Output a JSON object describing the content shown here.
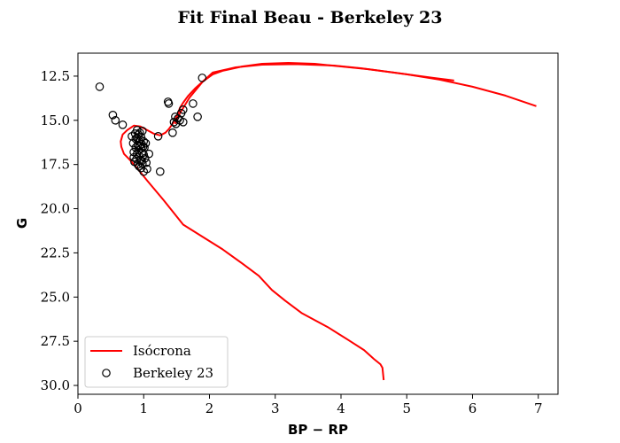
{
  "chart_data": {
    "type": "scatter",
    "title": "Fit Final Beau - Berkeley 23",
    "xlabel": "BP − RP",
    "ylabel": "G",
    "xlim": [
      0,
      7.3
    ],
    "ylim": [
      30.5,
      11.2
    ],
    "y_inverted": true,
    "grid": false,
    "legend_position": "lower-left",
    "x_ticks": [
      0,
      1,
      2,
      3,
      4,
      5,
      6,
      7
    ],
    "x_tick_labels": [
      "0",
      "1",
      "2",
      "3",
      "4",
      "5",
      "6",
      "7"
    ],
    "y_ticks": [
      12.5,
      15.0,
      17.5,
      20.0,
      22.5,
      25.0,
      27.5,
      30.0
    ],
    "y_tick_labels": [
      "12.5",
      "15.0",
      "17.5",
      "20.0",
      "22.5",
      "25.0",
      "27.5",
      "30.0"
    ],
    "series": [
      {
        "name": "Isócrona",
        "kind": "line",
        "color": "#ff0000",
        "x": [
          4.65,
          4.63,
          4.6,
          4.5,
          4.35,
          4.1,
          3.8,
          3.4,
          3.15,
          2.95,
          2.75,
          2.5,
          2.2,
          1.9,
          1.6,
          1.3,
          1.05,
          0.9,
          0.78,
          0.7,
          0.66,
          0.65,
          0.68,
          0.75,
          0.85,
          0.95,
          1.05,
          1.15,
          1.25,
          1.33,
          1.38,
          1.42,
          1.45,
          1.48,
          1.52,
          1.55,
          1.6,
          1.68,
          1.78,
          1.9,
          2.05,
          2.2,
          2.5,
          2.8,
          3.2,
          3.6,
          4.0,
          4.4,
          4.8,
          5.1,
          5.4,
          5.72
        ],
        "y": [
          29.7,
          29.0,
          28.8,
          28.5,
          28.0,
          27.4,
          26.7,
          25.9,
          25.2,
          24.6,
          23.8,
          23.1,
          22.3,
          21.6,
          20.9,
          19.5,
          18.4,
          17.7,
          17.2,
          16.9,
          16.5,
          16.2,
          15.8,
          15.55,
          15.3,
          15.35,
          15.55,
          15.75,
          15.85,
          15.7,
          15.5,
          15.3,
          15.15,
          14.95,
          14.6,
          14.3,
          14.0,
          13.6,
          13.2,
          12.8,
          12.4,
          12.2,
          11.95,
          11.8,
          11.75,
          11.8,
          11.95,
          12.1,
          12.3,
          12.45,
          12.6,
          12.75
        ]
      },
      {
        "name": "",
        "kind": "line",
        "color": "#ff0000",
        "x": [
          1.48,
          1.55,
          1.7,
          1.9,
          2.05,
          2.4,
          2.8,
          3.3,
          3.9,
          4.3,
          4.6,
          5.0,
          5.5,
          6.0,
          6.5,
          6.97
        ],
        "y": [
          15.2,
          14.6,
          13.7,
          12.8,
          12.3,
          12.0,
          11.85,
          11.82,
          11.9,
          12.05,
          12.2,
          12.4,
          12.7,
          13.1,
          13.6,
          14.2
        ]
      },
      {
        "name": "Berkeley 23",
        "kind": "scatter",
        "marker": "open-circle",
        "color": "#000000",
        "x": [
          0.33,
          0.53,
          0.57,
          0.68,
          0.82,
          0.84,
          0.85,
          0.85,
          0.86,
          0.87,
          0.88,
          0.88,
          0.89,
          0.9,
          0.9,
          0.9,
          0.91,
          0.91,
          0.92,
          0.92,
          0.93,
          0.93,
          0.93,
          0.94,
          0.94,
          0.95,
          0.95,
          0.96,
          0.96,
          0.96,
          0.97,
          0.97,
          0.98,
          0.98,
          0.98,
          0.99,
          1.0,
          1.0,
          1.0,
          1.01,
          1.02,
          1.03,
          1.04,
          1.05,
          1.08,
          1.22,
          1.25,
          1.37,
          1.38,
          1.44,
          1.46,
          1.48,
          1.49,
          1.52,
          1.55,
          1.57,
          1.6,
          1.6,
          1.75,
          1.82,
          1.89
        ],
        "y": [
          13.1,
          14.7,
          15.0,
          15.25,
          15.9,
          16.3,
          16.8,
          17.1,
          17.35,
          15.75,
          16.05,
          16.55,
          17.2,
          15.55,
          16.0,
          16.9,
          16.4,
          17.5,
          15.8,
          16.7,
          16.2,
          17.0,
          17.6,
          15.7,
          16.45,
          16.1,
          17.25,
          15.95,
          16.6,
          17.7,
          16.35,
          17.3,
          15.6,
          16.85,
          17.45,
          16.5,
          16.2,
          16.95,
          17.9,
          16.55,
          17.15,
          16.3,
          17.4,
          17.75,
          16.9,
          15.9,
          17.9,
          13.95,
          14.05,
          15.7,
          15.1,
          14.8,
          15.2,
          14.9,
          15.0,
          14.6,
          14.4,
          15.1,
          14.05,
          14.8,
          12.6
        ]
      }
    ]
  }
}
